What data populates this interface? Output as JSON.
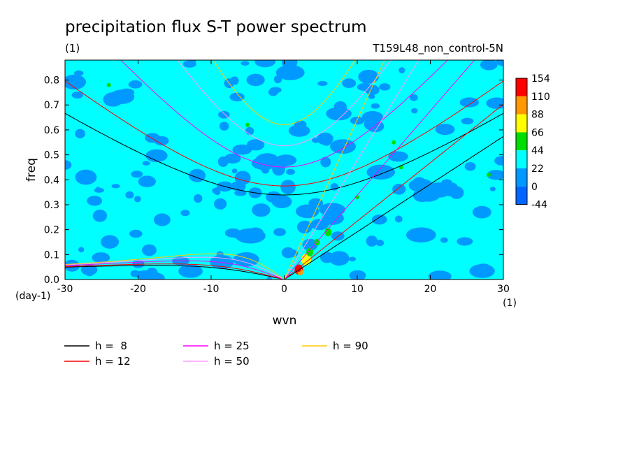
{
  "figure": {
    "title": "precipitation flux S-T power spectrum",
    "units_label": "(1)",
    "experiment": "T159L48_non_control-5N"
  },
  "chart_data": {
    "type": "heatmap",
    "title": "precipitation flux S-T power spectrum",
    "xlabel": "wvn",
    "ylabel": "freq",
    "x_units": "(1)",
    "y_units": "(day-1)",
    "xlim": [
      -30,
      30
    ],
    "ylim": [
      0.0,
      0.88
    ],
    "xticks": [
      -30,
      -20,
      -10,
      0,
      10,
      20,
      30
    ],
    "yticks": [
      0.0,
      0.1,
      0.2,
      0.3,
      0.4,
      0.5,
      0.6,
      0.7,
      0.8
    ],
    "colorbar": {
      "levels": [
        "154",
        "110",
        "88",
        "66",
        "44",
        "22",
        "0",
        "-44"
      ],
      "colors": [
        "#ff0000",
        "#ff9900",
        "#ffff00",
        "#00dd00",
        "#00ffff",
        "#0099ff",
        "#0066ff"
      ]
    },
    "background_level_color": "#00ffff",
    "dispersion_curves": [
      {
        "label": "h =  8",
        "h": 8,
        "color": "#000000"
      },
      {
        "label": "h = 12",
        "h": 12,
        "color": "#ff0000"
      },
      {
        "label": "h = 25",
        "h": 25,
        "color": "#ff00ff"
      },
      {
        "label": "h = 50",
        "h": 50,
        "color": "#ff99ff"
      },
      {
        "label": "h = 90",
        "h": 90,
        "color": "#ffcc00"
      }
    ],
    "grid": false,
    "legend_position": "bottom-left"
  }
}
